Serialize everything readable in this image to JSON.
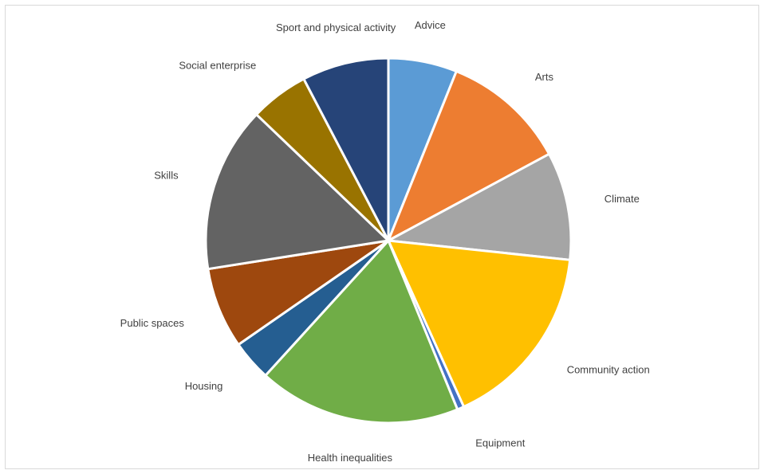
{
  "chart_data": {
    "type": "pie",
    "title": "",
    "categories": [
      "Advice",
      "Arts",
      "Climate",
      "Community action",
      "Equipment",
      "Health inequalities",
      "Housing",
      "Public spaces",
      "Skills",
      "Social enterprise",
      "Sport and physical activity"
    ],
    "values": [
      6.1,
      11.1,
      9.6,
      16.6,
      0.6,
      18.0,
      3.6,
      7.2,
      14.7,
      5.2,
      7.7
    ],
    "colors": [
      "#5b9bd5",
      "#ed7d31",
      "#a5a5a5",
      "#ffc000",
      "#4472c4",
      "#70ad47",
      "#255e91",
      "#9e480e",
      "#636363",
      "#997300",
      "#264478"
    ],
    "legend": "none",
    "data_labels": "category names outside slices"
  }
}
